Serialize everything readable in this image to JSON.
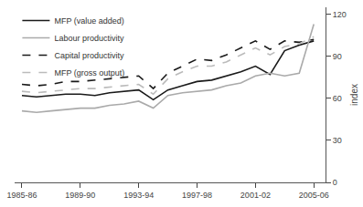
{
  "chart_data": {
    "type": "line",
    "x": [
      1985,
      1986,
      1987,
      1988,
      1989,
      1990,
      1991,
      1992,
      1993,
      1994,
      1995,
      1996,
      1997,
      1998,
      1999,
      2000,
      2001,
      2002,
      2003,
      2004,
      2005
    ],
    "series": [
      {
        "name": "MFP (value added)",
        "color": "#1a1a1a",
        "line_style": "solid",
        "values": [
          62,
          61,
          62,
          63,
          63,
          62,
          64,
          65,
          66,
          59,
          66,
          69,
          72,
          73,
          76,
          79,
          83,
          77,
          94,
          98,
          101
        ]
      },
      {
        "name": "Labour productivity",
        "color": "#aaaaaa",
        "line_style": "solid",
        "values": [
          51,
          50,
          51,
          52,
          53,
          53,
          55,
          56,
          58,
          53,
          62,
          64,
          65,
          66,
          69,
          71,
          76,
          78,
          76,
          78,
          113
        ]
      },
      {
        "name": "Capital productivity",
        "color": "#1a1a1a",
        "line_style": "dashed",
        "values": [
          70,
          69,
          70,
          72,
          72,
          73,
          74,
          75,
          76,
          67,
          78,
          83,
          88,
          87,
          91,
          96,
          101,
          95,
          101,
          100,
          102
        ]
      },
      {
        "name": "MFP (gross output)",
        "color": "#bbbbbb",
        "line_style": "dashed",
        "values": [
          65,
          64,
          65,
          66,
          67,
          67,
          68,
          69,
          70,
          63,
          74,
          79,
          83,
          83,
          86,
          91,
          96,
          91,
          97,
          99,
          104
        ]
      }
    ],
    "xlim": [
      1984.5,
      2005.8
    ],
    "xticks": [
      {
        "value": 1985,
        "label": "1985-86"
      },
      {
        "value": 1989,
        "label": "1989-90"
      },
      {
        "value": 1993,
        "label": "1993-94"
      },
      {
        "value": 1997,
        "label": "1997-98"
      },
      {
        "value": 2001,
        "label": "2001-02"
      },
      {
        "value": 2005,
        "label": "2005-06"
      }
    ],
    "ylim": [
      0,
      125
    ],
    "yticks": [
      0,
      30,
      60,
      90,
      120
    ],
    "y_label": "index",
    "grid": false,
    "legend": "top left"
  }
}
